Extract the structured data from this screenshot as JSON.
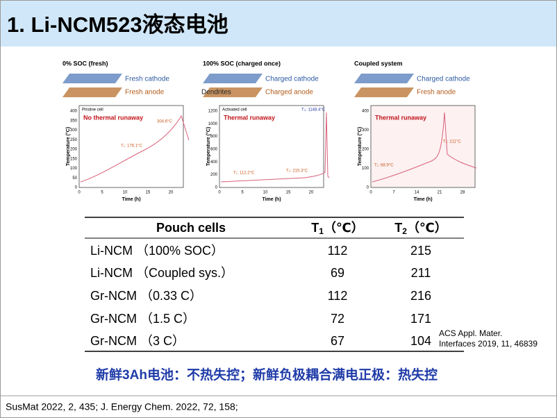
{
  "header": {
    "title": "1. Li-NCM523液态电池"
  },
  "figures": [
    {
      "title": "0% SOC (fresh)",
      "cathode": "Fresh cathode",
      "anode": "Fresh anode",
      "cell": "Pristine cell",
      "status": "No thermal runaway",
      "notes": [
        "T₁: 176.1°C",
        "304.6°C"
      ],
      "y_label": "Temperature (°C)",
      "x_label": "Time (h)",
      "yticks": [
        0,
        50,
        100,
        150,
        200,
        250,
        300,
        350,
        400
      ],
      "xticks": [
        0,
        5,
        10,
        15,
        20
      ]
    },
    {
      "title": "100% SOC (charged once)",
      "cathode": "Charged cathode",
      "anode": "Charged anode",
      "dendrites": "Dendrites",
      "cell": "Activated cell",
      "status": "Thermal runaway",
      "notes": [
        "T₁: 112.2°C",
        "T₂: 215.3°C",
        "T₃: 1148.4°C"
      ],
      "y_label": "Temperature (°C)",
      "x_label": "Time (h)",
      "yticks": [
        0,
        200,
        400,
        600,
        800,
        1000,
        1200
      ],
      "xticks": [
        0,
        5,
        10,
        15,
        20
      ]
    },
    {
      "title": "Coupled system",
      "cathode": "Charged cathode",
      "anode": "Fresh anode",
      "status": "Thermal runaway",
      "notes": [
        "T₁: 68.9°C",
        "T₂: 211°C"
      ],
      "y_label": "Temperature (°C)",
      "x_label": "Time (h)",
      "yticks": [
        0,
        100,
        200,
        300,
        400
      ],
      "xticks": [
        0,
        7,
        14,
        21,
        28
      ]
    }
  ],
  "table": {
    "header": [
      {
        "text": "Pouch cells"
      },
      {
        "text": "T",
        "sub": "1",
        "unit": "（℃）"
      },
      {
        "text": "T",
        "sub": "2",
        "unit": "（℃）"
      }
    ],
    "rows": [
      [
        "Li-NCM （100% SOC）",
        112,
        215
      ],
      [
        "Li-NCM （Coupled sys.）",
        69,
        211
      ],
      [
        "Gr-NCM （0.33 C）",
        112,
        216
      ],
      [
        "Gr-NCM （1.5 C）",
        72,
        171
      ],
      [
        "Gr-NCM （3 C）",
        67,
        104
      ]
    ]
  },
  "citation": [
    "ACS Appl. Mater.",
    "Interfaces 2019, 11, 46839"
  ],
  "conclusion": "新鲜3Ah电池：不热失控；新鲜负极耦合满电正极：热失控",
  "footer": "SusMat 2022, 2, 435; J. Energy Chem. 2022, 72, 158;"
}
